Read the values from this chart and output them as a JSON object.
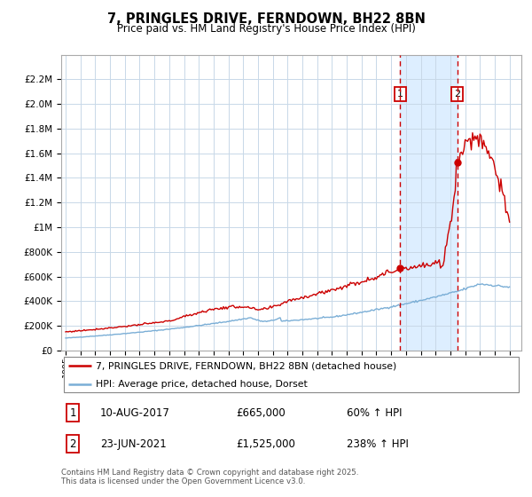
{
  "title": "7, PRINGLES DRIVE, FERNDOWN, BH22 8BN",
  "subtitle": "Price paid vs. HM Land Registry's House Price Index (HPI)",
  "legend_line1": "7, PRINGLES DRIVE, FERNDOWN, BH22 8BN (detached house)",
  "legend_line2": "HPI: Average price, detached house, Dorset",
  "annotation1_date": "10-AUG-2017",
  "annotation1_price": 665000,
  "annotation1_year": 2017.614,
  "annotation1_text": "£665,000",
  "annotation1_pct": "60% ↑ HPI",
  "annotation2_date": "23-JUN-2021",
  "annotation2_price": 1525000,
  "annotation2_year": 2021.473,
  "annotation2_text": "£1,525,000",
  "annotation2_pct": "238% ↑ HPI",
  "footer": "Contains HM Land Registry data © Crown copyright and database right 2025.\nThis data is licensed under the Open Government Licence v3.0.",
  "red_color": "#cc0000",
  "blue_color": "#7aaed6",
  "bg_highlight_color": "#ddeeff",
  "grid_color": "#c8d8e8",
  "ylim_max": 2400000,
  "x_start_year": 1995,
  "x_end_year": 2025
}
